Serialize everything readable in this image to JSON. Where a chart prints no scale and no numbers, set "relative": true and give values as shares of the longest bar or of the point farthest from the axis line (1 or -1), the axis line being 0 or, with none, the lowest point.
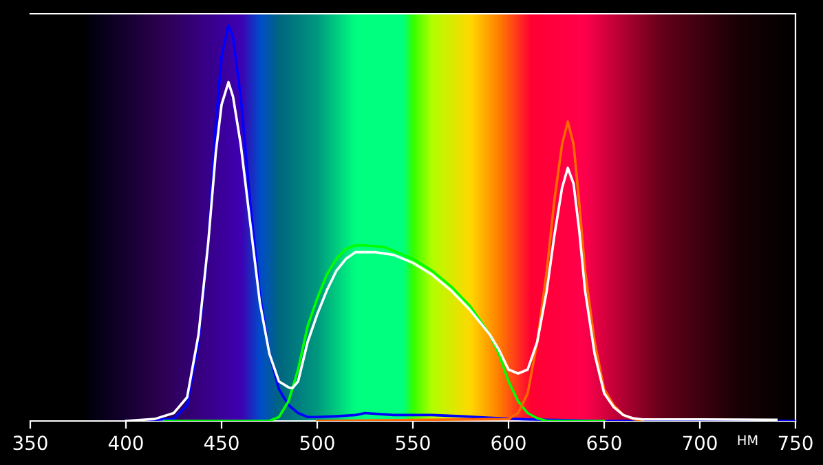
{
  "chart_data": {
    "type": "line",
    "relative": true,
    "xlabel": "НМ",
    "xlim": [
      350,
      750
    ],
    "xticks": [
      350,
      400,
      450,
      500,
      550,
      600,
      650,
      700,
      750
    ],
    "grid": false,
    "legend": false,
    "marker": "none",
    "line_style": "solid",
    "series": [
      {
        "color": "#0000ff",
        "x": [
          400,
          425,
          432,
          438,
          443,
          447,
          450,
          453.6,
          456,
          460,
          465,
          470,
          475,
          480,
          485,
          490,
          495,
          500,
          510,
          520,
          525,
          540,
          560,
          575,
          590,
          600,
          610,
          630,
          650,
          750
        ],
        "values": [
          0,
          0.005,
          0.04,
          0.2,
          0.45,
          0.75,
          0.92,
          1.0,
          0.97,
          0.82,
          0.55,
          0.32,
          0.17,
          0.08,
          0.04,
          0.02,
          0.01,
          0.01,
          0.012,
          0.015,
          0.02,
          0.015,
          0.015,
          0.012,
          0.008,
          0.006,
          0.004,
          0.002,
          0,
          0
        ]
      },
      {
        "color": "#00ff00",
        "x": [
          420,
          475,
          480,
          485,
          490,
          495,
          500,
          505,
          510,
          515,
          520,
          525,
          535,
          540,
          550,
          560,
          570,
          580,
          590,
          595,
          600,
          605,
          610,
          615,
          620,
          650
        ],
        "values": [
          0,
          0,
          0.01,
          0.05,
          0.13,
          0.24,
          0.31,
          0.37,
          0.41,
          0.435,
          0.444,
          0.444,
          0.44,
          0.43,
          0.41,
          0.38,
          0.34,
          0.29,
          0.22,
          0.17,
          0.1,
          0.05,
          0.02,
          0.007,
          0,
          0
        ]
      },
      {
        "color": "#ff6600",
        "x": [
          500,
          600,
          605,
          610,
          615,
          620,
          624,
          628,
          631,
          634,
          637,
          640,
          645,
          650,
          655,
          660,
          665,
          670
        ],
        "values": [
          0,
          0.005,
          0.02,
          0.07,
          0.2,
          0.38,
          0.56,
          0.7,
          0.757,
          0.7,
          0.55,
          0.38,
          0.2,
          0.08,
          0.04,
          0.015,
          0.005,
          0
        ]
      },
      {
        "color": "#ffffff",
        "x": [
          400,
          415,
          425,
          432,
          438,
          443,
          447,
          450,
          453.6,
          456,
          460,
          465,
          470,
          475,
          480,
          485,
          487,
          490,
          495,
          500,
          505,
          510,
          515,
          520,
          530,
          540,
          550,
          560,
          570,
          580,
          590,
          595,
          600,
          605,
          610,
          615,
          620,
          624,
          628,
          631,
          634,
          637,
          640,
          645,
          650,
          655,
          660,
          665,
          670,
          700,
          740
        ],
        "values": [
          0,
          0.005,
          0.02,
          0.06,
          0.22,
          0.45,
          0.68,
          0.8,
          0.857,
          0.82,
          0.7,
          0.5,
          0.3,
          0.17,
          0.1,
          0.085,
          0.083,
          0.1,
          0.2,
          0.27,
          0.33,
          0.38,
          0.41,
          0.427,
          0.427,
          0.42,
          0.4,
          0.37,
          0.33,
          0.28,
          0.22,
          0.18,
          0.13,
          0.12,
          0.13,
          0.2,
          0.33,
          0.47,
          0.59,
          0.64,
          0.6,
          0.48,
          0.33,
          0.17,
          0.07,
          0.035,
          0.015,
          0.007,
          0.004,
          0.004,
          0.003
        ]
      }
    ]
  }
}
